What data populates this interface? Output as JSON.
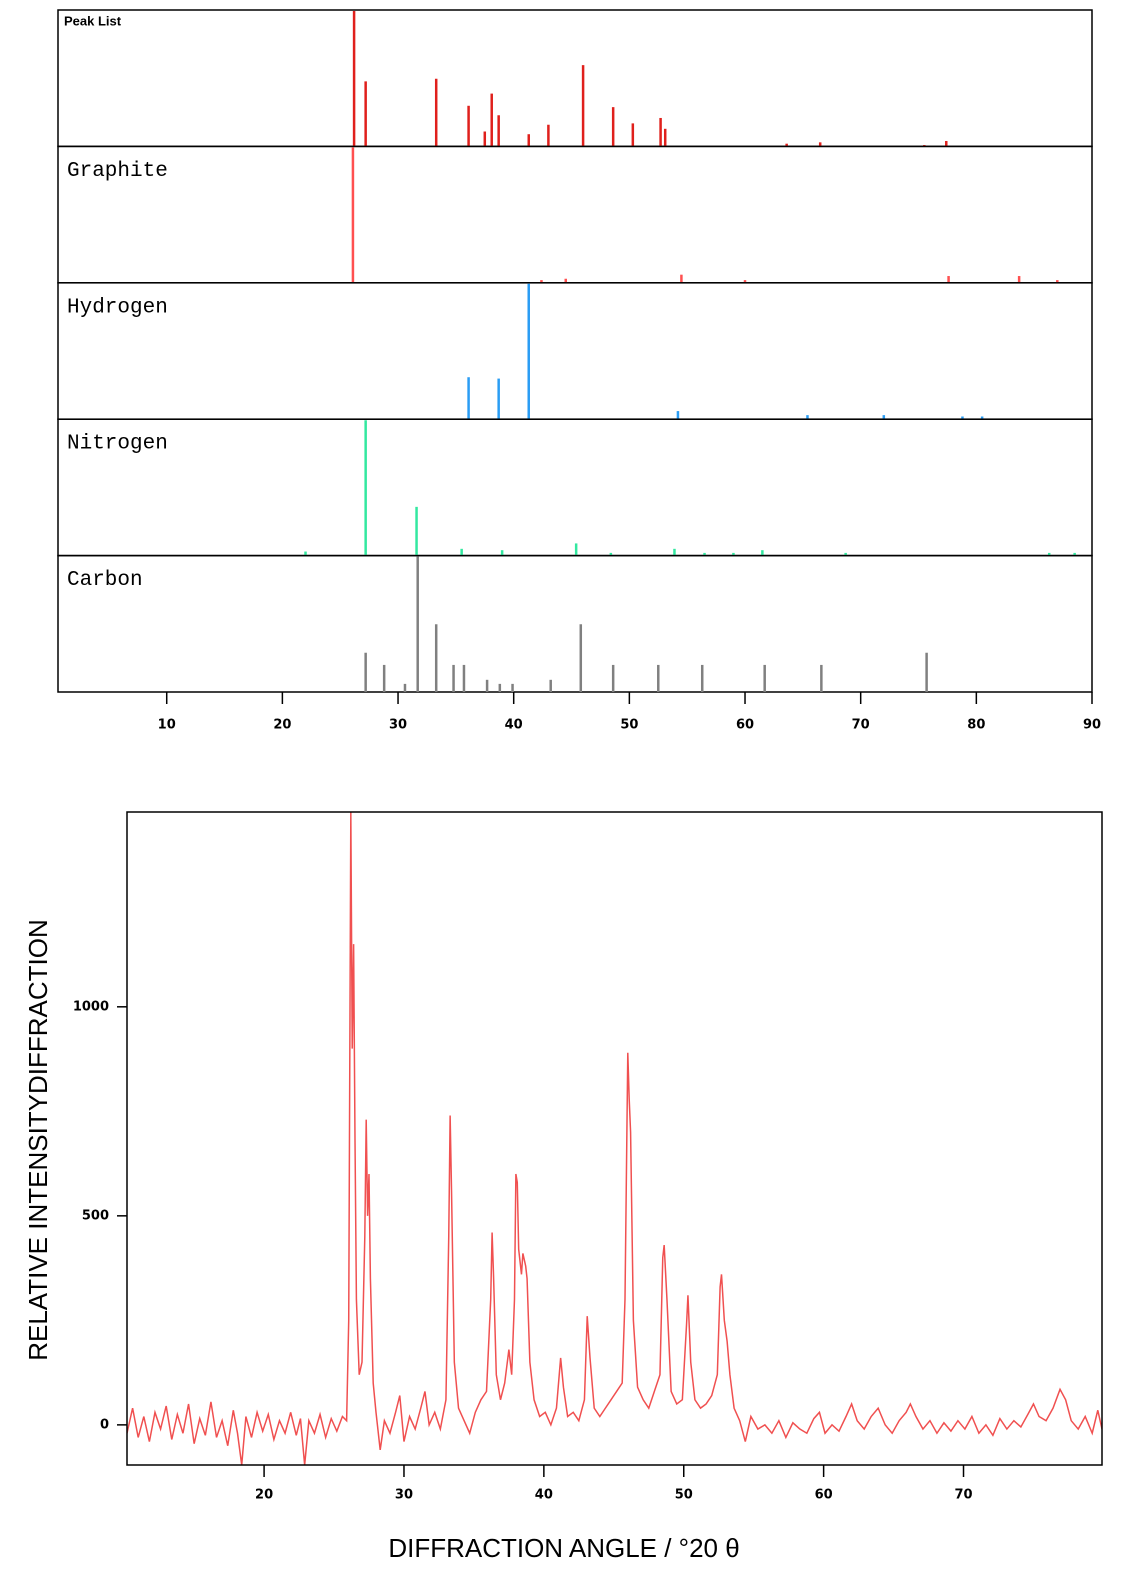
{
  "chart_data": [
    {
      "type": "stick",
      "xlim": [
        0.6,
        90
      ],
      "xticks": [
        10,
        20,
        30,
        40,
        50,
        60,
        70,
        80,
        90
      ],
      "ylim": [
        0,
        100
      ],
      "panels": [
        {
          "name": "Peak List",
          "color": "#e0201c",
          "x": [
            26.2,
            27.2,
            33.3,
            36.1,
            37.5,
            38.1,
            38.7,
            41.3,
            43.0,
            46.0,
            48.6,
            50.3,
            52.7,
            53.1,
            63.6,
            66.5,
            75.5,
            77.4
          ],
          "values": [
            100,
            48,
            50,
            30,
            11,
            39,
            23,
            9,
            16,
            60,
            29,
            17,
            21,
            13,
            2,
            3,
            1,
            4
          ]
        },
        {
          "name": "Graphite",
          "color": "#ff5050",
          "x": [
            26.1,
            42.4,
            44.5,
            54.5,
            60.0,
            77.6,
            83.7,
            87.0
          ],
          "values": [
            100,
            2,
            3,
            6,
            2,
            5,
            5,
            2
          ]
        },
        {
          "name": "Hydrogen",
          "color": "#2a9df4",
          "x": [
            36.1,
            38.7,
            41.3,
            54.2,
            65.4,
            72.0,
            78.8,
            80.5
          ],
          "values": [
            31,
            30,
            100,
            6,
            3,
            3,
            2,
            2
          ]
        },
        {
          "name": "Nitrogen",
          "color": "#33e8a0",
          "x": [
            22.0,
            27.2,
            31.6,
            35.5,
            39.0,
            45.4,
            48.4,
            53.9,
            56.5,
            59.0,
            61.5,
            68.7,
            86.3,
            88.5
          ],
          "values": [
            3,
            100,
            36,
            5,
            4,
            9,
            2,
            5,
            2,
            2,
            4,
            2,
            2,
            2
          ]
        },
        {
          "name": "Carbon",
          "color": "#808080",
          "x": [
            27.2,
            28.8,
            30.6,
            31.7,
            33.3,
            34.8,
            35.7,
            37.7,
            38.8,
            39.9,
            43.2,
            45.8,
            48.6,
            52.5,
            56.3,
            61.7,
            66.6,
            75.7
          ],
          "values": [
            29,
            20,
            6,
            100,
            50,
            20,
            20,
            9,
            6,
            6,
            9,
            50,
            20,
            20,
            20,
            20,
            20,
            29
          ]
        }
      ]
    },
    {
      "type": "line",
      "color": "#f05050",
      "x_label": "DIFFRACTION ANGLE / °20 θ",
      "y_label": "RELATIVE INTENSITYDIFFRACTION",
      "xlim": [
        10.2,
        79.9
      ],
      "xticks": [
        20,
        30,
        40,
        50,
        60,
        70
      ],
      "ylim": [
        -96,
        1466
      ],
      "yticks": [
        0,
        500,
        1000
      ],
      "x": [
        10.2,
        10.6,
        11.0,
        11.4,
        11.8,
        12.2,
        12.6,
        13.0,
        13.4,
        13.8,
        14.2,
        14.6,
        15.0,
        15.4,
        15.8,
        16.2,
        16.6,
        17.0,
        17.4,
        17.8,
        18.1,
        18.4,
        18.7,
        19.1,
        19.5,
        19.9,
        20.3,
        20.7,
        21.1,
        21.5,
        21.9,
        22.3,
        22.6,
        22.9,
        23.2,
        23.6,
        24.0,
        24.4,
        24.8,
        25.2,
        25.6,
        25.9,
        26.05,
        26.2,
        26.3,
        26.4,
        26.5,
        26.6,
        26.8,
        27.0,
        27.2,
        27.3,
        27.4,
        27.5,
        27.6,
        27.8,
        28.0,
        28.3,
        28.6,
        29.0,
        29.4,
        29.7,
        30.0,
        30.4,
        30.8,
        31.2,
        31.5,
        31.8,
        32.2,
        32.6,
        33.0,
        33.2,
        33.3,
        33.4,
        33.6,
        33.9,
        34.3,
        34.7,
        35.1,
        35.5,
        35.9,
        36.2,
        36.3,
        36.4,
        36.6,
        36.9,
        37.2,
        37.5,
        37.7,
        37.9,
        38.0,
        38.1,
        38.2,
        38.4,
        38.5,
        38.7,
        38.8,
        39.0,
        39.3,
        39.7,
        40.1,
        40.5,
        40.9,
        41.2,
        41.4,
        41.7,
        42.1,
        42.5,
        42.9,
        43.1,
        43.3,
        43.6,
        44.0,
        44.4,
        44.8,
        45.2,
        45.6,
        45.8,
        46.0,
        46.1,
        46.2,
        46.4,
        46.7,
        47.1,
        47.5,
        47.9,
        48.3,
        48.5,
        48.6,
        48.8,
        49.1,
        49.5,
        49.9,
        50.2,
        50.3,
        50.5,
        50.8,
        51.2,
        51.6,
        52.0,
        52.4,
        52.6,
        52.7,
        52.9,
        53.1,
        53.3,
        53.6,
        54.0,
        54.4,
        54.8,
        55.3,
        55.8,
        56.3,
        56.8,
        57.3,
        57.8,
        58.3,
        58.8,
        59.3,
        59.7,
        60.1,
        60.6,
        61.1,
        61.6,
        62.0,
        62.4,
        62.9,
        63.4,
        63.9,
        64.4,
        64.9,
        65.4,
        65.9,
        66.2,
        66.6,
        67.1,
        67.6,
        68.1,
        68.6,
        69.1,
        69.6,
        70.1,
        70.6,
        71.1,
        71.6,
        72.1,
        72.6,
        73.1,
        73.6,
        74.1,
        74.6,
        75.0,
        75.4,
        75.9,
        76.4,
        76.9,
        77.3,
        77.7,
        78.2,
        78.7,
        79.2,
        79.6,
        79.9
      ],
      "values": [
        -20,
        40,
        -30,
        20,
        -40,
        30,
        -10,
        45,
        -35,
        25,
        -20,
        50,
        -45,
        15,
        -25,
        55,
        -30,
        10,
        -50,
        35,
        -20,
        -96,
        20,
        -30,
        30,
        -15,
        25,
        -35,
        10,
        -20,
        30,
        -25,
        15,
        -96,
        10,
        -20,
        25,
        -30,
        15,
        -15,
        20,
        10,
        250,
        1466,
        900,
        1150,
        680,
        300,
        120,
        150,
        450,
        730,
        500,
        600,
        350,
        100,
        30,
        -60,
        10,
        -20,
        30,
        70,
        -40,
        20,
        -10,
        40,
        80,
        0,
        30,
        -10,
        60,
        450,
        740,
        560,
        150,
        40,
        10,
        -20,
        30,
        60,
        80,
        300,
        460,
        360,
        120,
        60,
        100,
        180,
        120,
        300,
        600,
        580,
        420,
        360,
        410,
        380,
        350,
        150,
        60,
        20,
        30,
        0,
        40,
        160,
        90,
        20,
        30,
        10,
        60,
        260,
        160,
        40,
        20,
        40,
        60,
        80,
        100,
        300,
        890,
        780,
        700,
        250,
        90,
        60,
        40,
        80,
        120,
        400,
        430,
        300,
        80,
        50,
        60,
        240,
        310,
        150,
        60,
        40,
        50,
        70,
        120,
        330,
        360,
        250,
        200,
        120,
        40,
        10,
        -40,
        20,
        -10,
        0,
        -20,
        10,
        -30,
        5,
        -10,
        -20,
        15,
        30,
        -20,
        0,
        -15,
        20,
        50,
        10,
        -10,
        20,
        40,
        0,
        -20,
        10,
        30,
        50,
        20,
        -10,
        10,
        -20,
        5,
        -15,
        10,
        -10,
        20,
        -20,
        0,
        -25,
        15,
        -10,
        10,
        -5,
        25,
        50,
        20,
        10,
        40,
        85,
        60,
        10,
        -10,
        20,
        -20,
        35,
        -10
      ]
    }
  ]
}
